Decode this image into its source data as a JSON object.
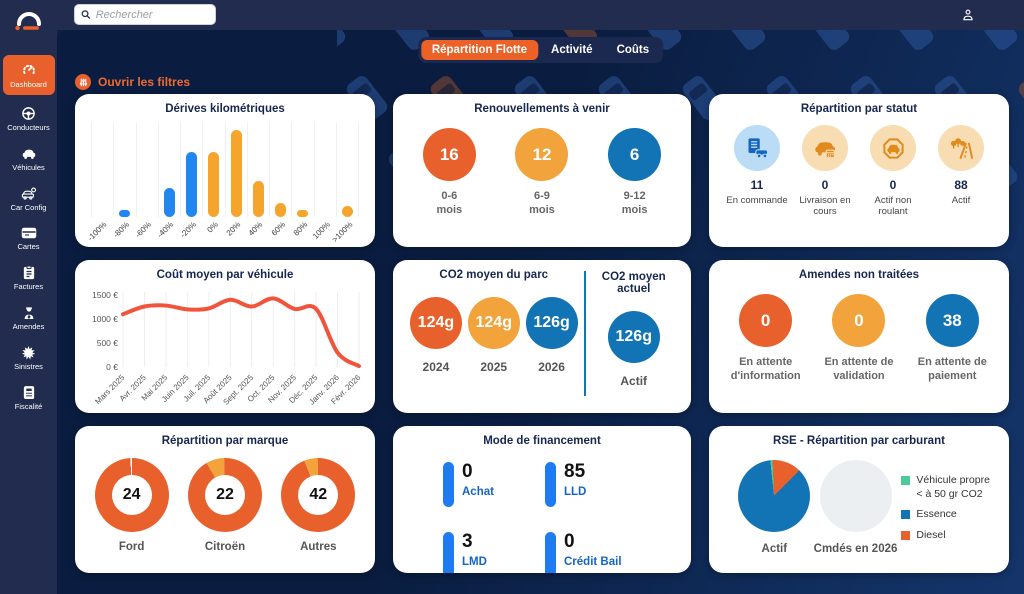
{
  "topbar": {
    "search_placeholder": "Rechercher"
  },
  "sidebar": {
    "items": [
      {
        "label": "Dashboard",
        "active": true
      },
      {
        "label": "Conducteurs",
        "active": false
      },
      {
        "label": "Véhicules",
        "active": false
      },
      {
        "label": "Car Config",
        "active": false
      },
      {
        "label": "Cartes",
        "active": false
      },
      {
        "label": "Factures",
        "active": false
      },
      {
        "label": "Amendes",
        "active": false
      },
      {
        "label": "Sinistres",
        "active": false
      },
      {
        "label": "Fiscalité",
        "active": false
      }
    ]
  },
  "tabs": [
    {
      "label": "Répartition Flotte",
      "active": true
    },
    {
      "label": "Activité",
      "active": false
    },
    {
      "label": "Coûts",
      "active": false
    }
  ],
  "filters": {
    "label": "Ouvrir les filtres"
  },
  "cards": {
    "derives": {
      "title": "Dérives kilométriques"
    },
    "renouvellements": {
      "title": "Renouvellements à venir",
      "items": [
        {
          "value": "16",
          "label": "0-6 mois",
          "color": "#E8612C"
        },
        {
          "value": "12",
          "label": "6-9 mois",
          "color": "#F2A33B"
        },
        {
          "value": "6",
          "label": "9-12 mois",
          "color": "#1273B5"
        }
      ]
    },
    "statut": {
      "title": "Répartition par statut",
      "items": [
        {
          "value": "11",
          "label": "En commande"
        },
        {
          "value": "0",
          "label": "Livraison en cours"
        },
        {
          "value": "0",
          "label": "Actif non roulant"
        },
        {
          "value": "88",
          "label": "Actif"
        }
      ]
    },
    "cout": {
      "title": "Coût moyen par véhicule"
    },
    "co2parc": {
      "title": "CO2 moyen du parc",
      "items": [
        {
          "value": "124g",
          "label": "2024",
          "color": "#E8612C"
        },
        {
          "value": "124g",
          "label": "2025",
          "color": "#F2A33B"
        },
        {
          "value": "126g",
          "label": "2026",
          "color": "#1273B5"
        }
      ]
    },
    "co2actuel": {
      "title": "CO2 moyen actuel",
      "items": [
        {
          "value": "126g",
          "label": "Actif",
          "color": "#1273B5"
        }
      ]
    },
    "amendes": {
      "title": "Amendes non traitées",
      "items": [
        {
          "value": "0",
          "label": "En attente d'information",
          "color": "#E8612C"
        },
        {
          "value": "0",
          "label": "En attente de validation",
          "color": "#F2A33B"
        },
        {
          "value": "38",
          "label": "En attente de paiement",
          "color": "#1273B5"
        }
      ]
    },
    "marque": {
      "title": "Répartition par marque"
    },
    "financement": {
      "title": "Mode de financement",
      "items": [
        {
          "value": "0",
          "label": "Achat"
        },
        {
          "value": "85",
          "label": "LLD"
        },
        {
          "value": "3",
          "label": "LMD"
        },
        {
          "value": "0",
          "label": "Crédit Bail"
        }
      ]
    },
    "rse": {
      "title": "RSE - Répartition par carburant"
    }
  },
  "chart_data": [
    {
      "type": "bar",
      "title": "Dérives kilométriques",
      "categories": [
        "-100%",
        "-80%",
        "-60%",
        "-40%",
        "-20%",
        "0%",
        "20%",
        "40%",
        "60%",
        "80%",
        "100%",
        ">100%"
      ],
      "values": [
        0,
        1,
        0,
        4,
        9,
        9,
        12,
        5,
        2,
        1,
        0,
        1.5
      ],
      "bar_colors": [
        "#2286F0",
        "#2286F0",
        "#2286F0",
        "#2286F0",
        "#2286F0",
        "#F5A52B",
        "#F5A52B",
        "#F5A52B",
        "#F5A52B",
        "#F5A52B",
        "#F5A52B",
        "#F5A52B"
      ],
      "ylim": [
        0,
        13
      ],
      "grid": "vertical"
    },
    {
      "type": "line",
      "title": "Coût moyen par véhicule",
      "x": [
        "Mars 2025",
        "Avr. 2025",
        "Mai 2025",
        "Juin 2025",
        "Juil. 2025",
        "Août 2025",
        "Sept. 2025",
        "Oct. 2025",
        "Nov. 2025",
        "Déc. 2025",
        "Janv. 2026",
        "Févr. 2026"
      ],
      "values": [
        1100,
        1260,
        1280,
        1200,
        1220,
        1400,
        1260,
        1430,
        1210,
        1210,
        300,
        20
      ],
      "ylim": [
        0,
        1500
      ],
      "ytick_values": [
        0,
        500,
        1000,
        1500
      ],
      "ylabel_ticks": [
        "0 €",
        "500 €",
        "1000 €",
        "1500 €"
      ],
      "line_color": "#F0553C",
      "grid": "vertical"
    },
    {
      "type": "donut",
      "title": "Répartition par marque",
      "donuts": [
        {
          "label": "Ford",
          "value": 24,
          "start": 0,
          "segments": [
            {
              "color": "#E8612C",
              "pct": 99.3
            },
            {
              "color": "#FFFFFF",
              "pct": 0.7
            }
          ]
        },
        {
          "label": "Citroën",
          "value": 22,
          "start": -30,
          "segments": [
            {
              "color": "#F2A33B",
              "pct": 8
            },
            {
              "color": "#E8612C",
              "pct": 92
            }
          ]
        },
        {
          "label": "Autres",
          "value": 42,
          "start": -22,
          "segments": [
            {
              "color": "#F2A33B",
              "pct": 6
            },
            {
              "color": "#E8612C",
              "pct": 94
            }
          ]
        }
      ]
    },
    {
      "type": "pie",
      "title": "RSE - Répartition par carburant",
      "pies": [
        {
          "label": "Actif",
          "start": -6,
          "segments": [
            {
              "name": "Véhicule propre",
              "color": "#4DC99A",
              "pct": 1
            },
            {
              "name": "Diesel",
              "color": "#E8612C",
              "pct": 13
            },
            {
              "name": "Essence",
              "color": "#1273B5",
              "pct": 86
            }
          ]
        },
        {
          "label": "Cmdés en 2026",
          "start": 0,
          "segments": [
            {
              "name": "vide",
              "color": "#ECEFF2",
              "pct": 100
            }
          ]
        }
      ],
      "legend": [
        {
          "label": "Véhicule propre < à 50 gr CO2",
          "color": "#4DC99A"
        },
        {
          "label": "Essence",
          "color": "#1273B5"
        },
        {
          "label": "Diesel",
          "color": "#E8612C"
        }
      ],
      "legend_position": "right"
    }
  ]
}
